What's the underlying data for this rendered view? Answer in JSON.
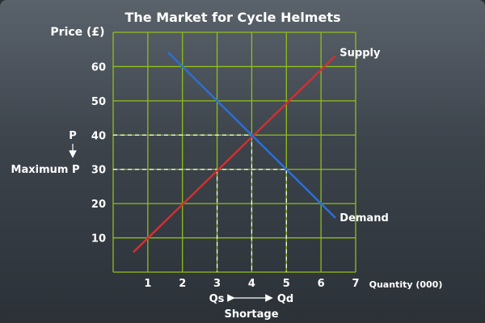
{
  "chart_data": {
    "type": "line",
    "title": "The Market for Cycle Helmets",
    "ylabel": "Price (£)",
    "xlabel": "Quantity (000)",
    "xlim": [
      0,
      7
    ],
    "ylim": [
      0,
      70
    ],
    "x_ticks": [
      1,
      2,
      3,
      4,
      5,
      6,
      7
    ],
    "y_ticks": [
      10,
      20,
      30,
      40,
      50,
      60
    ],
    "grid": true,
    "colors": {
      "grid": "#8fbf1a",
      "supply": "#d03030",
      "demand": "#2a6fd6",
      "text": "#ffffff",
      "guide": "#ffffff"
    },
    "series": [
      {
        "name": "Supply",
        "x": [
          0.6,
          6.4
        ],
        "y": [
          6,
          63
        ]
      },
      {
        "name": "Demand",
        "x": [
          1.6,
          6.4
        ],
        "y": [
          64,
          16
        ]
      }
    ],
    "annotations": {
      "price_label": "P",
      "max_price_label": "Maximum P",
      "qs_label": "Qs",
      "qd_label": "Qd",
      "shortage_label": "Shortage",
      "equilibrium": {
        "x": 4,
        "y": 40
      },
      "max_price": 30,
      "qs": 3,
      "qd": 5
    }
  }
}
